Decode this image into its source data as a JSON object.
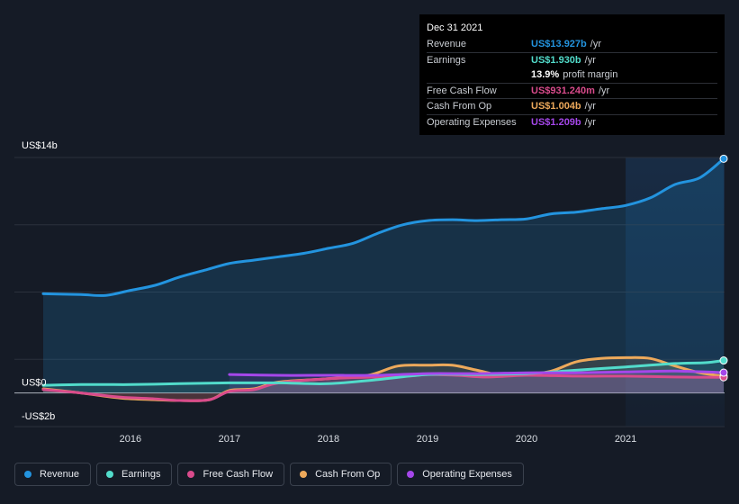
{
  "chart_data": {
    "type": "line",
    "y_axis": {
      "top_label": "US$14b",
      "zero_label": "US$0",
      "bottom_label": "-US$2b",
      "ylim": [
        -2,
        14
      ],
      "unit": "US$ billions"
    },
    "x_ticks": [
      "2016",
      "2017",
      "2018",
      "2019",
      "2020",
      "2021"
    ],
    "x_tick_values": [
      2016,
      2017,
      2018,
      2019,
      2020,
      2021
    ],
    "xlim": [
      2015.12,
      2021.99
    ],
    "highlight_start": 2021.0,
    "series": [
      {
        "name": "Revenue",
        "color": "#2394df",
        "fill": true,
        "x": [
          2015.12,
          2015.5,
          2015.75,
          2016.0,
          2016.25,
          2016.5,
          2016.75,
          2017.0,
          2017.25,
          2017.5,
          2017.75,
          2018.0,
          2018.25,
          2018.5,
          2018.75,
          2019.0,
          2019.25,
          2019.5,
          2019.75,
          2020.0,
          2020.25,
          2020.5,
          2020.75,
          2021.0,
          2021.25,
          2021.5,
          2021.75,
          2021.99
        ],
        "values": [
          5.9,
          5.85,
          5.8,
          6.1,
          6.4,
          6.9,
          7.3,
          7.7,
          7.9,
          8.1,
          8.3,
          8.6,
          8.9,
          9.5,
          10.0,
          10.25,
          10.3,
          10.25,
          10.3,
          10.35,
          10.65,
          10.75,
          10.95,
          11.15,
          11.6,
          12.4,
          12.8,
          13.927
        ]
      },
      {
        "name": "Earnings",
        "color": "#52dccb",
        "fill": true,
        "x": [
          2015.12,
          2015.5,
          2016.0,
          2016.5,
          2017.0,
          2017.5,
          2018.0,
          2018.5,
          2019.0,
          2019.5,
          2020.0,
          2020.5,
          2021.0,
          2021.5,
          2021.8,
          2021.99
        ],
        "values": [
          0.45,
          0.5,
          0.5,
          0.55,
          0.6,
          0.6,
          0.55,
          0.8,
          1.1,
          1.1,
          1.15,
          1.35,
          1.55,
          1.75,
          1.8,
          1.93
        ]
      },
      {
        "name": "Free Cash Flow",
        "color": "#d94b8c",
        "fill": true,
        "x": [
          2015.12,
          2015.5,
          2015.9,
          2016.25,
          2016.5,
          2016.8,
          2017.0,
          2017.25,
          2017.5,
          2018.0,
          2018.5,
          2018.8,
          2019.0,
          2019.3,
          2019.6,
          2020.0,
          2020.5,
          2021.0,
          2021.5,
          2021.99
        ],
        "values": [
          0.2,
          0.0,
          -0.25,
          -0.35,
          -0.45,
          -0.4,
          0.1,
          0.2,
          0.6,
          0.85,
          0.95,
          1.0,
          1.1,
          1.05,
          0.95,
          1.05,
          1.0,
          1.0,
          0.95,
          0.931
        ]
      },
      {
        "name": "Cash From Op",
        "color": "#eda95b",
        "fill": true,
        "x": [
          2015.12,
          2015.5,
          2015.9,
          2016.25,
          2016.5,
          2016.8,
          2017.0,
          2017.25,
          2017.5,
          2018.0,
          2018.4,
          2018.7,
          2019.0,
          2019.25,
          2019.5,
          2019.75,
          2020.0,
          2020.25,
          2020.5,
          2020.75,
          2021.0,
          2021.25,
          2021.5,
          2021.75,
          2021.99
        ],
        "values": [
          0.25,
          0.0,
          -0.3,
          -0.4,
          -0.45,
          -0.4,
          0.15,
          0.25,
          0.65,
          0.85,
          1.05,
          1.6,
          1.65,
          1.65,
          1.35,
          1.05,
          1.1,
          1.3,
          1.85,
          2.05,
          2.1,
          2.05,
          1.6,
          1.2,
          1.004
        ]
      },
      {
        "name": "Operating Expenses",
        "color": "#a547ea",
        "fill": true,
        "x": [
          2017.0,
          2017.5,
          2018.0,
          2018.5,
          2019.0,
          2019.5,
          2020.0,
          2020.5,
          2021.0,
          2021.5,
          2021.99
        ],
        "values": [
          1.1,
          1.05,
          1.05,
          1.05,
          1.15,
          1.15,
          1.2,
          1.2,
          1.25,
          1.3,
          1.209
        ]
      }
    ]
  },
  "tooltip": {
    "date": "Dec 31 2021",
    "rows": [
      {
        "label": "Revenue",
        "value": "US$13.927b",
        "unit": "/yr",
        "color": "#2394df"
      },
      {
        "label": "Earnings",
        "value": "US$1.930b",
        "unit": "/yr",
        "color": "#52dccb"
      },
      {
        "label": "",
        "value": "13.9%",
        "unit": "profit margin",
        "color": "#ffffff"
      },
      {
        "label": "Free Cash Flow",
        "value": "US$931.240m",
        "unit": "/yr",
        "color": "#d94b8c"
      },
      {
        "label": "Cash From Op",
        "value": "US$1.004b",
        "unit": "/yr",
        "color": "#eda95b"
      },
      {
        "label": "Operating Expenses",
        "value": "US$1.209b",
        "unit": "/yr",
        "color": "#a547ea"
      }
    ]
  },
  "legend": [
    {
      "label": "Revenue",
      "color": "#2394df"
    },
    {
      "label": "Earnings",
      "color": "#52dccb"
    },
    {
      "label": "Free Cash Flow",
      "color": "#d94b8c"
    },
    {
      "label": "Cash From Op",
      "color": "#eda95b"
    },
    {
      "label": "Operating Expenses",
      "color": "#a547ea"
    }
  ]
}
